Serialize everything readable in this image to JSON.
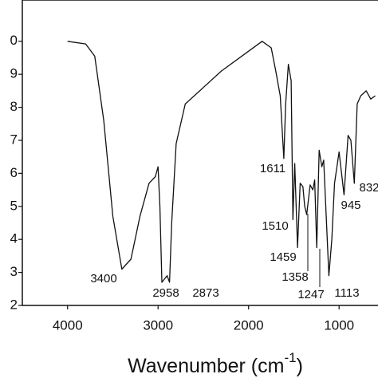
{
  "chart_data": {
    "type": "line",
    "x_label": {
      "text": "Wavenumber (cm",
      "sup": "-1",
      "end": ")"
    },
    "x": [
      4000,
      3800,
      3700,
      3600,
      3500,
      3400,
      3300,
      3200,
      3100,
      3030,
      3000,
      2980,
      2958,
      2930,
      2900,
      2873,
      2850,
      2800,
      2700,
      2500,
      2300,
      2000,
      1850,
      1750,
      1700,
      1650,
      1611,
      1590,
      1560,
      1530,
      1510,
      1490,
      1459,
      1430,
      1400,
      1380,
      1358,
      1320,
      1290,
      1270,
      1247,
      1220,
      1190,
      1170,
      1113,
      1080,
      1050,
      1000,
      945,
      900,
      870,
      832,
      800,
      760,
      700,
      650,
      600
    ],
    "series": [
      {
        "color": "#111111",
        "values": [
          10.0,
          9.92,
          9.55,
          7.6,
          4.7,
          3.1,
          3.4,
          4.7,
          5.7,
          5.9,
          6.2,
          5.0,
          2.7,
          2.8,
          2.9,
          2.7,
          4.5,
          6.9,
          8.1,
          8.6,
          9.1,
          9.7,
          10.0,
          9.8,
          9.1,
          8.35,
          6.45,
          8.1,
          9.3,
          8.8,
          4.6,
          6.3,
          3.75,
          5.7,
          5.6,
          5.0,
          4.75,
          5.65,
          5.5,
          5.8,
          3.75,
          6.7,
          6.2,
          6.4,
          2.9,
          4.0,
          5.7,
          6.65,
          5.35,
          7.15,
          7.0,
          5.7,
          8.1,
          8.35,
          8.5,
          8.25,
          8.35
        ]
      }
    ],
    "xlim": [
      4500,
      570
    ],
    "xticks": [
      4000,
      3000,
      2000,
      1000
    ],
    "ylim": [
      2,
      11.25
    ],
    "yticks": [
      2,
      3,
      4,
      5,
      6,
      7,
      8,
      9,
      {
        "value": 10,
        "label": "0"
      }
    ],
    "annotations": [
      "3400",
      "2958",
      "2873",
      "1611",
      "1510",
      "1459",
      "1358",
      "1247",
      "1113",
      "945",
      "832"
    ]
  }
}
